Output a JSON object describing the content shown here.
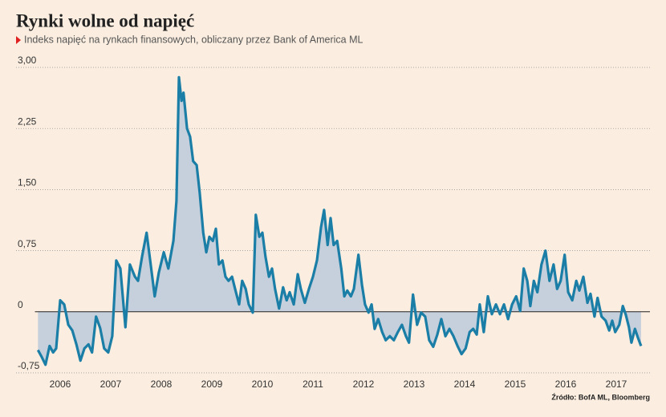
{
  "chart_data": {
    "type": "line",
    "title": "Rynki wolne od napięć",
    "subtitle": "Indeks napięć na rynkach finansowych, obliczany przez Bank of America ML",
    "source": "Źródło: BofA ML, Bloomberg",
    "xlim": [
      2006.0,
      2018.0
    ],
    "xticks": [
      {
        "value": 2006.5,
        "label": "2006"
      },
      {
        "value": 2007.5,
        "label": "2007"
      },
      {
        "value": 2008.5,
        "label": "2008"
      },
      {
        "value": 2009.5,
        "label": "2009"
      },
      {
        "value": 2010.5,
        "label": "2010"
      },
      {
        "value": 2011.5,
        "label": "2011"
      },
      {
        "value": 2012.5,
        "label": "2012"
      },
      {
        "value": 2013.5,
        "label": "2013"
      },
      {
        "value": 2014.5,
        "label": "2014"
      },
      {
        "value": 2015.5,
        "label": "2015"
      },
      {
        "value": 2016.5,
        "label": "2016"
      },
      {
        "value": 2017.5,
        "label": "2017"
      }
    ],
    "ylim": [
      -0.8,
      3.05
    ],
    "yticks": [
      {
        "value": -0.75,
        "label": "-0,75"
      },
      0,
      {
        "value": 0.75,
        "label": "0,75"
      },
      {
        "value": 1.5,
        "label": "1,50"
      },
      {
        "value": 2.25,
        "label": "2,25"
      },
      {
        "value": 3,
        "label": "3,00"
      }
    ],
    "grid": true,
    "x": [
      2006.06,
      2006.13,
      2006.21,
      2006.29,
      2006.36,
      2006.42,
      2006.5,
      2006.58,
      2006.66,
      2006.74,
      2006.82,
      2006.9,
      2006.98,
      2007.06,
      2007.13,
      2007.21,
      2007.29,
      2007.37,
      2007.45,
      2007.53,
      2007.61,
      2007.69,
      2007.79,
      2007.88,
      2007.98,
      2008.04,
      2008.12,
      2008.21,
      2008.29,
      2008.37,
      2008.45,
      2008.55,
      2008.64,
      2008.74,
      2008.8,
      2008.85,
      2008.9,
      2008.94,
      2009.01,
      2009.07,
      2009.13,
      2009.2,
      2009.26,
      2009.33,
      2009.39,
      2009.45,
      2009.52,
      2009.58,
      2009.64,
      2009.71,
      2009.77,
      2009.83,
      2009.9,
      2009.96,
      2010.04,
      2010.1,
      2010.17,
      2010.23,
      2010.31,
      2010.37,
      2010.44,
      2010.5,
      2010.56,
      2010.63,
      2010.69,
      2010.75,
      2010.83,
      2010.91,
      2010.98,
      2011.04,
      2011.12,
      2011.2,
      2011.26,
      2011.34,
      2011.42,
      2011.5,
      2011.58,
      2011.66,
      2011.72,
      2011.79,
      2011.85,
      2011.91,
      2011.98,
      2012.06,
      2012.12,
      2012.18,
      2012.25,
      2012.31,
      2012.4,
      2012.47,
      2012.53,
      2012.6,
      2012.66,
      2012.72,
      2012.79,
      2012.87,
      2012.94,
      2013.02,
      2013.1,
      2013.18,
      2013.26,
      2013.34,
      2013.4,
      2013.48,
      2013.56,
      2013.64,
      2013.72,
      2013.8,
      2013.88,
      2013.96,
      2014.04,
      2014.12,
      2014.2,
      2014.28,
      2014.36,
      2014.44,
      2014.52,
      2014.6,
      2014.67,
      2014.74,
      2014.8,
      2014.88,
      2014.96,
      2015.04,
      2015.12,
      2015.2,
      2015.28,
      2015.36,
      2015.44,
      2015.52,
      2015.6,
      2015.67,
      2015.74,
      2015.8,
      2015.87,
      2015.94,
      2016.02,
      2016.1,
      2016.18,
      2016.26,
      2016.33,
      2016.4,
      2016.48,
      2016.55,
      2016.63,
      2016.71,
      2016.77,
      2016.85,
      2016.93,
      2016.99,
      2017.07,
      2017.13,
      2017.21,
      2017.29,
      2017.36,
      2017.42,
      2017.48,
      2017.56,
      2017.63,
      2017.69,
      2017.75,
      2017.8,
      2017.87,
      2017.93,
      2017.99
    ],
    "series": [
      {
        "color": "#1a7ea6",
        "fill": "#c6cfdc",
        "values": [
          -0.47,
          -0.55,
          -0.65,
          -0.42,
          -0.5,
          -0.45,
          0.14,
          0.09,
          -0.16,
          -0.23,
          -0.4,
          -0.6,
          -0.45,
          -0.4,
          -0.5,
          -0.06,
          -0.2,
          -0.45,
          -0.5,
          -0.3,
          0.63,
          0.53,
          -0.19,
          0.58,
          0.43,
          0.38,
          0.68,
          0.97,
          0.58,
          0.19,
          0.48,
          0.73,
          0.53,
          0.87,
          1.36,
          2.88,
          2.59,
          2.69,
          2.25,
          2.15,
          1.85,
          1.8,
          1.46,
          0.97,
          0.73,
          0.92,
          0.87,
          1.02,
          0.58,
          0.63,
          0.43,
          0.38,
          0.43,
          0.28,
          0.09,
          0.38,
          0.28,
          0.09,
          -0.01,
          1.19,
          0.92,
          0.97,
          0.68,
          0.43,
          0.53,
          0.28,
          0.04,
          0.3,
          0.14,
          0.24,
          0.09,
          0.46,
          0.28,
          0.11,
          0.28,
          0.43,
          0.63,
          1.04,
          1.25,
          0.82,
          1.15,
          0.82,
          0.87,
          0.53,
          0.19,
          0.26,
          0.19,
          0.28,
          0.7,
          0.33,
          0.09,
          -0.01,
          0.09,
          -0.21,
          -0.09,
          -0.25,
          -0.35,
          -0.3,
          -0.35,
          -0.25,
          -0.16,
          -0.3,
          -0.38,
          0.21,
          -0.16,
          -0.01,
          -0.06,
          -0.35,
          -0.43,
          -0.28,
          -0.09,
          -0.3,
          -0.21,
          -0.3,
          -0.42,
          -0.52,
          -0.45,
          -0.25,
          -0.21,
          -0.28,
          0.09,
          -0.25,
          0.19,
          -0.03,
          0.09,
          -0.03,
          0.09,
          -0.09,
          0.09,
          0.19,
          0.01,
          0.53,
          0.38,
          0.07,
          0.38,
          0.24,
          0.58,
          0.75,
          0.38,
          0.58,
          0.28,
          0.38,
          0.7,
          0.24,
          0.14,
          0.38,
          0.26,
          0.43,
          0.11,
          0.22,
          -0.06,
          0.17,
          -0.06,
          -0.11,
          -0.23,
          -0.11,
          -0.25,
          -0.16,
          0.07,
          -0.04,
          -0.19,
          -0.38,
          -0.21,
          -0.32,
          -0.42
        ]
      }
    ]
  }
}
